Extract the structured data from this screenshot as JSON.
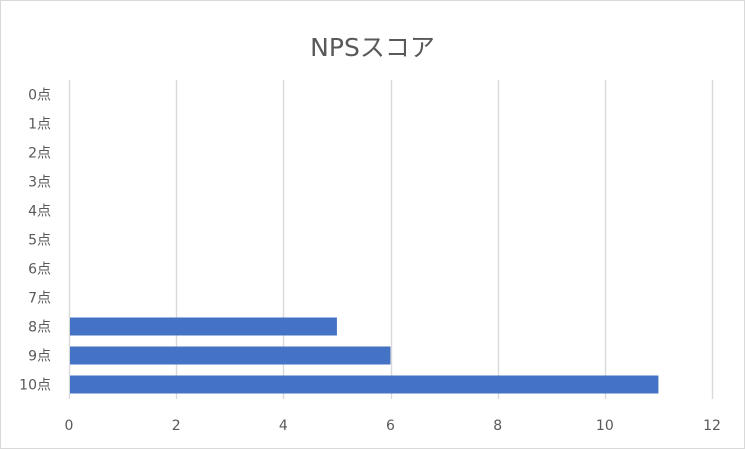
{
  "chart_data": {
    "type": "bar",
    "orientation": "horizontal",
    "title": "NPSスコア",
    "xlabel": "",
    "ylabel": "",
    "categories": [
      "0点",
      "1点",
      "2点",
      "3点",
      "4点",
      "5点",
      "6点",
      "7点",
      "8点",
      "9点",
      "10点"
    ],
    "values": [
      0,
      0,
      0,
      0,
      0,
      0,
      0,
      0,
      5,
      6,
      11
    ],
    "xlim": [
      0,
      12
    ],
    "xticks": [
      0,
      2,
      4,
      6,
      8,
      10,
      12
    ],
    "grid": "vertical",
    "legend": "none",
    "bar_color": "#4472c4",
    "grid_color": "#d9d9d9"
  }
}
